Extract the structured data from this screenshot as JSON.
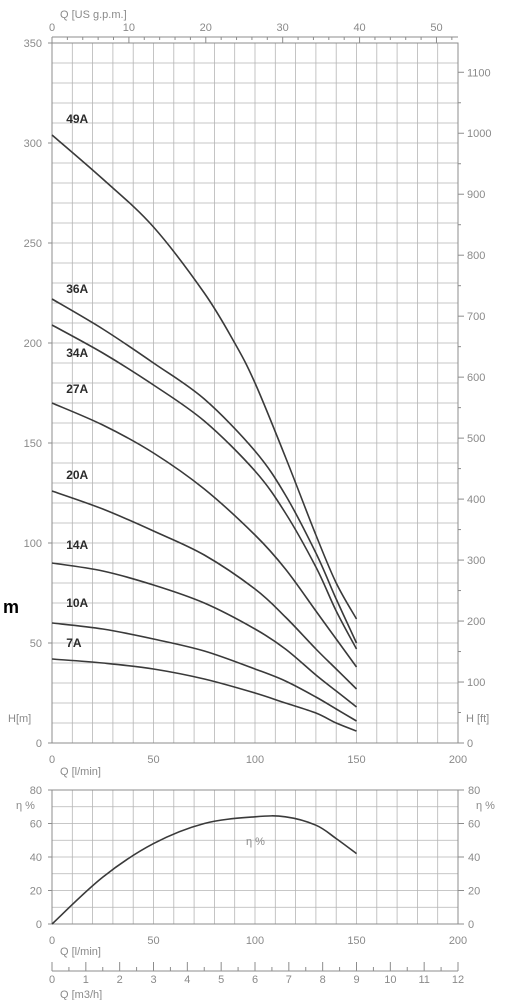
{
  "chart_data": [
    {
      "type": "line",
      "xlabel": "Q [l/min]",
      "ylabel": "H[m]",
      "y2label": "H [ft]",
      "x2label": "Q [US g.p.m.]",
      "side_unit": "m",
      "xlim": [
        0,
        200
      ],
      "ylim": [
        0,
        350
      ],
      "y2lim": [
        0,
        1148
      ],
      "x2lim": [
        0,
        52.8
      ],
      "xticks": [
        0,
        50,
        100,
        150,
        200
      ],
      "yticks": [
        0,
        50,
        100,
        150,
        200,
        250,
        300,
        350
      ],
      "y2ticks": [
        0,
        100,
        200,
        300,
        400,
        500,
        600,
        700,
        800,
        900,
        1000,
        1100
      ],
      "x2ticks": [
        10,
        20,
        30,
        40,
        50
      ],
      "x2ticks_labeled": [
        0,
        10,
        20,
        30,
        40,
        50
      ],
      "grid": true,
      "series": [
        {
          "name": "49A",
          "x": [
            0,
            25,
            50,
            75,
            90,
            100,
            115,
            130,
            140,
            150
          ],
          "y": [
            304,
            282,
            258,
            225,
            200,
            180,
            143,
            104,
            80,
            62
          ]
        },
        {
          "name": "36A",
          "x": [
            0,
            25,
            50,
            75,
            100,
            115,
            130,
            140,
            150
          ],
          "y": [
            222,
            207,
            190,
            172,
            146,
            124,
            95,
            72,
            50
          ]
        },
        {
          "name": "34A",
          "x": [
            0,
            25,
            50,
            75,
            100,
            115,
            130,
            140,
            150
          ],
          "y": [
            209,
            195,
            179,
            161,
            136,
            115,
            88,
            66,
            47
          ]
        },
        {
          "name": "27A",
          "x": [
            0,
            25,
            50,
            75,
            100,
            115,
            130,
            140,
            150
          ],
          "y": [
            170,
            159,
            145,
            127,
            104,
            87,
            66,
            52,
            38
          ]
        },
        {
          "name": "20A",
          "x": [
            0,
            25,
            50,
            75,
            100,
            115,
            130,
            140,
            150
          ],
          "y": [
            126,
            117,
            106,
            94,
            77,
            63,
            47,
            37,
            27
          ]
        },
        {
          "name": "14A",
          "x": [
            0,
            25,
            50,
            75,
            100,
            115,
            130,
            140,
            150
          ],
          "y": [
            90,
            86,
            79,
            70,
            57,
            47,
            34,
            26,
            18
          ]
        },
        {
          "name": "10A",
          "x": [
            0,
            25,
            50,
            75,
            100,
            115,
            130,
            140,
            150
          ],
          "y": [
            60,
            57,
            52,
            46,
            37,
            31,
            23,
            17,
            11
          ]
        },
        {
          "name": "7A",
          "x": [
            0,
            25,
            50,
            75,
            100,
            115,
            130,
            140,
            150
          ],
          "y": [
            42,
            40,
            37,
            32,
            25,
            20,
            15,
            10,
            6
          ]
        }
      ],
      "curve_labels": [
        {
          "name": "49A",
          "x": 7,
          "y": 306
        },
        {
          "name": "36A",
          "x": 7,
          "y": 221
        },
        {
          "name": "34A",
          "x": 7,
          "y": 189
        },
        {
          "name": "27A",
          "x": 7,
          "y": 171
        },
        {
          "name": "20A",
          "x": 7,
          "y": 128
        },
        {
          "name": "14A",
          "x": 7,
          "y": 93
        },
        {
          "name": "10A",
          "x": 7,
          "y": 64
        },
        {
          "name": "7A",
          "x": 7,
          "y": 44
        }
      ]
    },
    {
      "type": "line",
      "xlabel": "Q [l/min]",
      "ylabel": "η %",
      "y2label": "η %",
      "x2label": "Q [m3/h]",
      "xlim": [
        0,
        200
      ],
      "ylim": [
        0,
        80
      ],
      "xticks": [
        0,
        50,
        100,
        150,
        200
      ],
      "yticks": [
        0,
        20,
        40,
        60,
        80
      ],
      "m3h_ticks": [
        0,
        1,
        2,
        3,
        4,
        5,
        6,
        7,
        8,
        9,
        10,
        11,
        12
      ],
      "m3h_lim": [
        0,
        12
      ],
      "grid": true,
      "series": [
        {
          "name": "η %",
          "x": [
            0,
            25,
            50,
            75,
            100,
            115,
            130,
            140,
            150
          ],
          "y": [
            0,
            28,
            48,
            60,
            64,
            64,
            59,
            51,
            42
          ]
        }
      ],
      "curve_label": {
        "text": "η %",
        "x": 100,
        "y": 51
      }
    }
  ]
}
